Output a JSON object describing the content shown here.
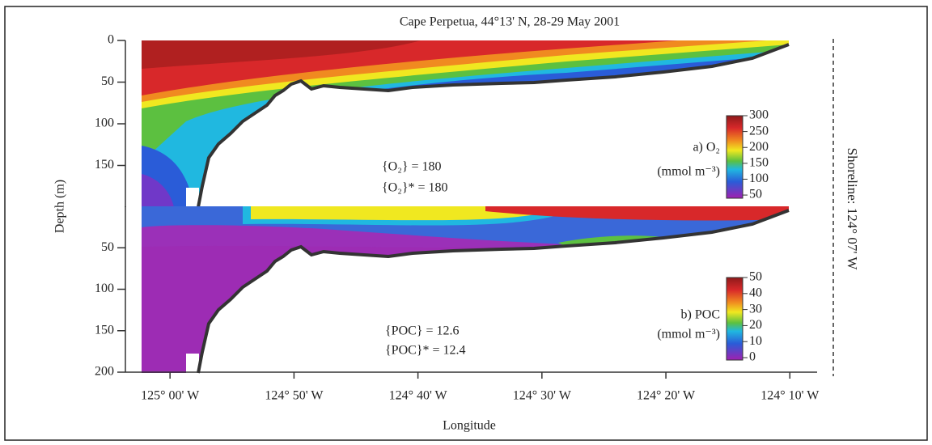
{
  "chart_data": [
    {
      "type": "heatmap",
      "title": "Cape Perpetua, 44°13' N, 28-29 May 2001",
      "ylabel": "Depth (m)",
      "shoreline": "Shoreline: 124° 07' W",
      "panel_label": "a) O₂",
      "units": "(mmol m⁻³)",
      "annotations": [
        "{O₂} = 180",
        "{O₂}* = 180"
      ],
      "xlim": [
        -125.06,
        -124.13
      ],
      "ylim": [
        0,
        200
      ],
      "yticks": [
        0,
        50,
        100,
        150
      ],
      "clim": [
        40,
        300
      ],
      "cticks": [
        300,
        250,
        200,
        150,
        100,
        50
      ]
    },
    {
      "type": "heatmap",
      "xlabel": "Longitude",
      "panel_label": "b) POC",
      "units": "(mmol m⁻³)",
      "annotations": [
        "{POC} = 12.6",
        "{POC}* = 12.4"
      ],
      "xlim": [
        -125.06,
        -124.13
      ],
      "ylim": [
        0,
        200
      ],
      "yticks": [
        50,
        100,
        150,
        200
      ],
      "xticks": [
        {
          "value": -125,
          "label": "125° 00' W"
        },
        {
          "value": -124.83333,
          "label": "124° 50' W"
        },
        {
          "value": -124.66667,
          "label": "124° 40' W"
        },
        {
          "value": -124.5,
          "label": "124° 30' W"
        },
        {
          "value": -124.33333,
          "label": "124° 20' W"
        },
        {
          "value": -124.16667,
          "label": "124° 10' W"
        }
      ],
      "clim": [
        -1.5,
        50
      ],
      "cticks": [
        50,
        40,
        30,
        20,
        10,
        0
      ]
    }
  ]
}
